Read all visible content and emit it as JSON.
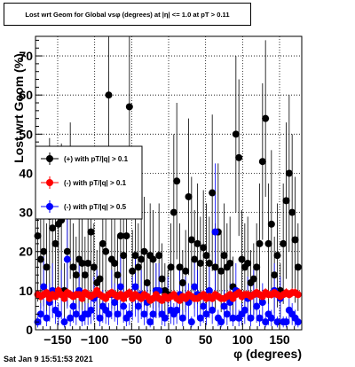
{
  "chart_data": {
    "type": "scatter",
    "title": "Lost wrt Geom for Global vsφ (degrees) at |η| <= 1.0 at pT > 0.11",
    "xlabel": "φ (degrees)",
    "ylabel": "Lost wrt Geom (%)",
    "xlim": [
      -180,
      180
    ],
    "ylim": [
      0,
      75
    ],
    "xticks": [
      -150,
      -100,
      -50,
      0,
      50,
      100,
      150
    ],
    "yticks": [
      0,
      10,
      20,
      30,
      40,
      50,
      60,
      70
    ],
    "grid": true,
    "legend_position": "middle-left",
    "series": [
      {
        "name": "(+) with pT/|q| > 0.1",
        "color": "#000000",
        "x": [
          -177,
          -173,
          -169,
          -165,
          -161,
          -157,
          -153,
          -149,
          -145,
          -141,
          -137,
          -133,
          -129,
          -125,
          -121,
          -117,
          -113,
          -109,
          -105,
          -101,
          -97,
          -93,
          -89,
          -85,
          -81,
          -77,
          -73,
          -69,
          -65,
          -61,
          -57,
          -53,
          -49,
          -45,
          -41,
          -37,
          -33,
          -29,
          -25,
          -21,
          -17,
          -13,
          -9,
          -5,
          -1,
          3,
          7,
          11,
          15,
          19,
          23,
          27,
          31,
          35,
          39,
          43,
          47,
          51,
          55,
          59,
          63,
          67,
          71,
          75,
          79,
          83,
          87,
          91,
          95,
          99,
          103,
          107,
          111,
          115,
          119,
          123,
          127,
          131,
          135,
          139,
          143,
          147,
          151,
          155,
          159,
          163,
          167,
          171,
          175
        ],
        "y": [
          24,
          18,
          20,
          16,
          29,
          26,
          22,
          27,
          28,
          10,
          20,
          33,
          16,
          14,
          18,
          17,
          14,
          17,
          25,
          16,
          12,
          13,
          22,
          20,
          60,
          18,
          17,
          14,
          24,
          19,
          24,
          57,
          15,
          19,
          16,
          18,
          20,
          12,
          19,
          18,
          10,
          19,
          13,
          10,
          9,
          16,
          30,
          38,
          16,
          12,
          15,
          34,
          23,
          18,
          22,
          17,
          21,
          19,
          17,
          35,
          16,
          25,
          15,
          19,
          16,
          17,
          11,
          50,
          44,
          18,
          16,
          17,
          12,
          13,
          16,
          22,
          43,
          54,
          22,
          27,
          14,
          19,
          10,
          22,
          33,
          40,
          30,
          23,
          16
        ]
      },
      {
        "name": "(-) with pT/|q| > 0.1",
        "color": "#ff0000",
        "x": [
          -177,
          -173,
          -169,
          -165,
          -161,
          -157,
          -153,
          -149,
          -145,
          -141,
          -137,
          -133,
          -129,
          -125,
          -121,
          -117,
          -113,
          -109,
          -105,
          -101,
          -97,
          -93,
          -89,
          -85,
          -81,
          -77,
          -73,
          -69,
          -65,
          -61,
          -57,
          -53,
          -49,
          -45,
          -41,
          -37,
          -33,
          -29,
          -25,
          -21,
          -17,
          -13,
          -9,
          -5,
          -1,
          3,
          7,
          11,
          15,
          19,
          23,
          27,
          31,
          35,
          39,
          43,
          47,
          51,
          55,
          59,
          63,
          67,
          71,
          75,
          79,
          83,
          87,
          91,
          95,
          99,
          103,
          107,
          111,
          115,
          119,
          123,
          127,
          131,
          135,
          139,
          143,
          147,
          151,
          155,
          159,
          163,
          167,
          171,
          175
        ],
        "y": [
          9,
          8.5,
          9,
          9.5,
          8,
          9,
          8.5,
          10,
          9,
          8,
          9.5,
          9,
          8.5,
          9,
          9,
          8,
          9.5,
          9,
          8.5,
          9,
          10,
          9,
          8.5,
          8,
          9,
          9.5,
          9,
          8.5,
          9,
          8,
          9,
          9.5,
          8,
          9,
          8.5,
          8,
          9,
          8.5,
          7.5,
          8,
          9,
          8,
          7.5,
          8.5,
          8,
          8.5,
          9,
          8,
          7.5,
          8.5,
          8,
          9,
          8.5,
          8,
          8,
          8.5,
          9,
          8,
          8.5,
          8,
          9,
          8.5,
          8,
          8,
          8.5,
          9,
          8,
          9,
          9.5,
          8.5,
          9,
          9,
          8.5,
          9,
          9.5,
          9,
          8.5,
          9.5,
          9,
          9,
          9.5,
          9,
          8.5,
          9,
          9.5,
          9,
          9.5,
          9.5,
          9
        ]
      },
      {
        "name": "(-) with pT/|q| > 0.5",
        "color": "#0000ff",
        "x": [
          -177,
          -173,
          -169,
          -165,
          -161,
          -157,
          -153,
          -149,
          -145,
          -141,
          -137,
          -133,
          -129,
          -125,
          -121,
          -117,
          -113,
          -109,
          -105,
          -101,
          -97,
          -93,
          -89,
          -85,
          -81,
          -77,
          -73,
          -69,
          -65,
          -61,
          -57,
          -53,
          -49,
          -45,
          -41,
          -37,
          -33,
          -29,
          -25,
          -21,
          -17,
          -13,
          -9,
          -5,
          -1,
          3,
          7,
          11,
          15,
          19,
          23,
          27,
          31,
          35,
          39,
          43,
          47,
          51,
          55,
          59,
          63,
          67,
          71,
          75,
          79,
          83,
          87,
          91,
          95,
          99,
          103,
          107,
          111,
          115,
          119,
          123,
          127,
          131,
          135,
          139,
          143,
          147,
          151,
          155,
          159,
          163,
          167,
          171,
          175
        ],
        "y": [
          2,
          4,
          11,
          3,
          7,
          10,
          5,
          4,
          9,
          2,
          18,
          3,
          6,
          4,
          10,
          3,
          4,
          4,
          5,
          8,
          9,
          3,
          6,
          5,
          4,
          9,
          7,
          4,
          11,
          6,
          3,
          4,
          8,
          11,
          6,
          9,
          4,
          7,
          2,
          4,
          10,
          10,
          4,
          3,
          8,
          5,
          4,
          5,
          9,
          3,
          8,
          7,
          2,
          11,
          9,
          3,
          6,
          4,
          10,
          5,
          25,
          3,
          2,
          6,
          4,
          7,
          3,
          10,
          3,
          4,
          5,
          8,
          3,
          9,
          6,
          3,
          7,
          2,
          4,
          3,
          10,
          2,
          8,
          2,
          2,
          5,
          4,
          3,
          2
        ]
      }
    ]
  },
  "footer": {
    "date": "Sat Jan  9 15:51:53 2021"
  }
}
